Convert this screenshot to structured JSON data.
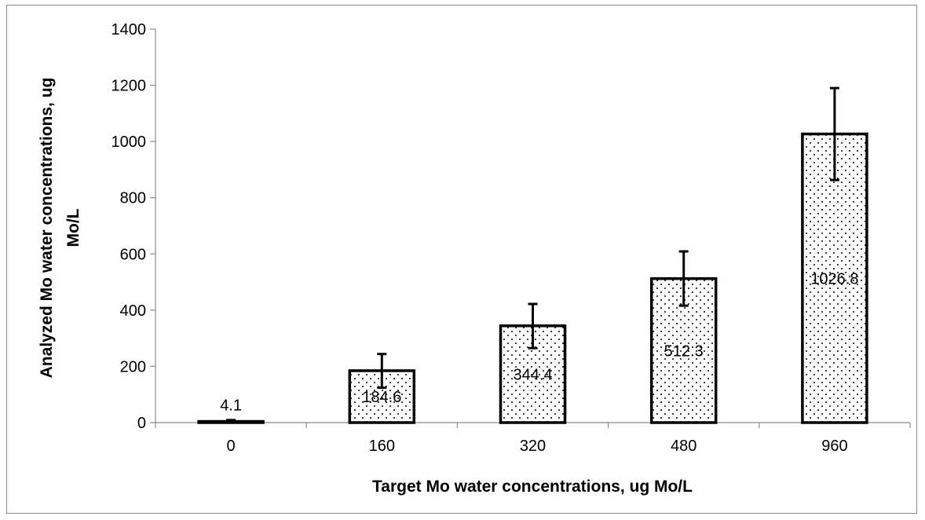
{
  "chart_data": {
    "type": "bar",
    "title": "",
    "xlabel": "Target Mo water concentrations, ug Mo/L",
    "ylabel_line1": "Analyzed Mo water concentrations, ug",
    "ylabel_line2": "Mo/L",
    "categories": [
      "0",
      "160",
      "320",
      "480",
      "960"
    ],
    "values": [
      4.1,
      184.6,
      344.4,
      512.3,
      1026.8
    ],
    "value_labels": [
      "4.1",
      "184.6",
      "344.4",
      "512.3",
      "1026.8"
    ],
    "error_lower": [
      0,
      124,
      265,
      416,
      863
    ],
    "error_upper": [
      9,
      244,
      422,
      609,
      1190
    ],
    "ylim": [
      0,
      1400
    ],
    "yticks": [
      "0",
      "200",
      "400",
      "600",
      "800",
      "1000",
      "1200",
      "1400"
    ],
    "grid": false,
    "legend": "none",
    "bar_fill": "dotted-pattern",
    "bar_stroke": "#000000"
  }
}
